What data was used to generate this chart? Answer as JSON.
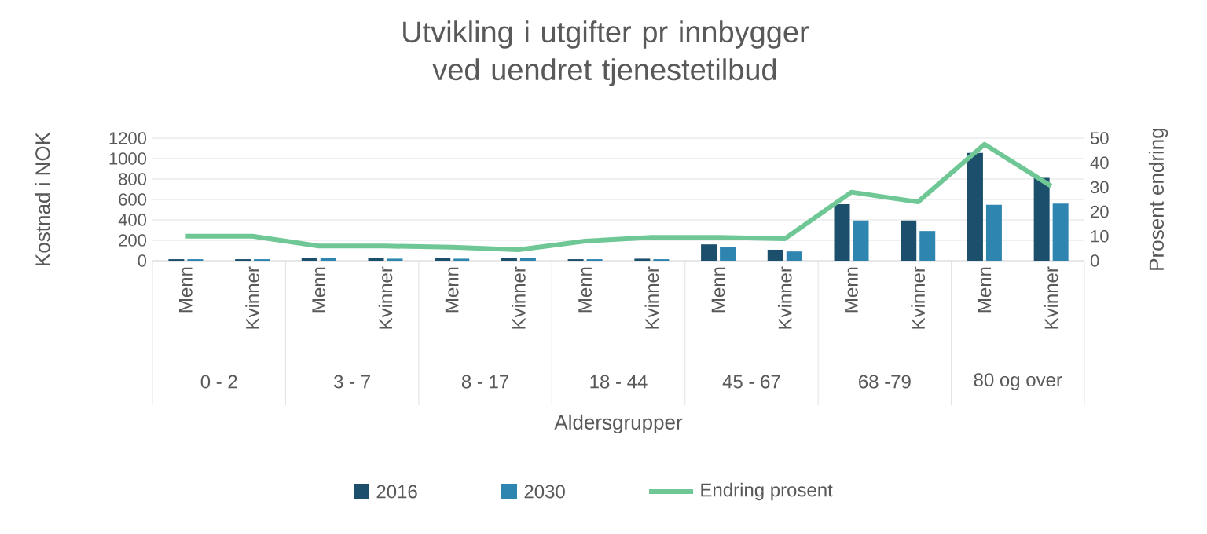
{
  "chart_data": {
    "type": "bar",
    "title": "Utvikling i utgifter pr innbygger ved uendret tjenestetilbud",
    "xlabel": "Aldersgrupper",
    "ylabel": "Kostnad i NOK",
    "y2label": "Prosent endring",
    "categories": [
      "Menn",
      "Kvinner",
      "Menn",
      "Kvinner",
      "Menn",
      "Kvinner",
      "Menn",
      "Kvinner",
      "Menn",
      "Kvinner",
      "Menn",
      "Kvinner",
      "Menn",
      "Kvinner"
    ],
    "annotations": [
      "0 - 2",
      "3 - 7",
      "8 - 17",
      "18 - 44",
      "45 - 67",
      "68 -79",
      "80 og over"
    ],
    "series": [
      {
        "name": "2016",
        "color": "#1b4f6b",
        "values": [
          15,
          15,
          25,
          25,
          25,
          25,
          15,
          20,
          160,
          108,
          553,
          394,
          1055,
          811
        ]
      },
      {
        "name": "2030",
        "color": "#2e86b0",
        "values": [
          15,
          15,
          25,
          20,
          20,
          25,
          15,
          15,
          137,
          91,
          394,
          291,
          548,
          560
        ]
      },
      {
        "name": "Endring prosent",
        "type": "line",
        "axis": "y2",
        "color": "#6fc795",
        "values": [
          10,
          10,
          6,
          6,
          5.5,
          4.5,
          8,
          9.5,
          9.5,
          9,
          28,
          24,
          47.5,
          30.5
        ]
      }
    ],
    "ylim": [
      0,
      1200
    ],
    "yticks": [
      0,
      200,
      400,
      600,
      800,
      1000,
      1200
    ],
    "y2lim": [
      0,
      50
    ],
    "y2ticks": [
      0,
      10,
      20,
      30,
      40,
      50
    ],
    "grid": "y",
    "legend": "bottom",
    "marker": "none",
    "line_style": "solid"
  }
}
